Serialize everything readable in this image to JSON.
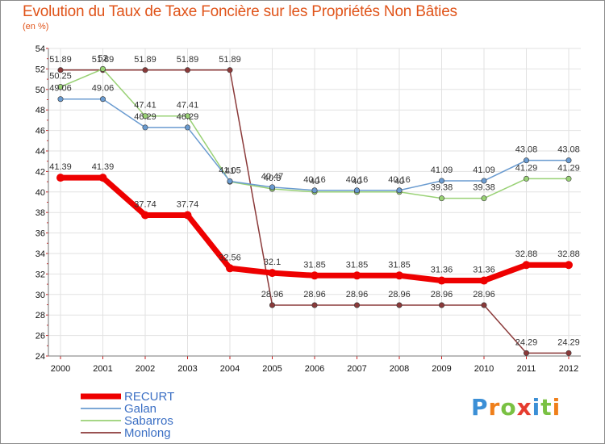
{
  "title": "Evolution du Taux de Taxe Foncière sur les Propriétés Non Bâties",
  "subtitle": "(en %)",
  "logo": {
    "text": "Proxiti",
    "colors": [
      "#3b8fd6",
      "#ef7f1a",
      "#7ac143",
      "#e63c2f",
      "#3b8fd6",
      "#7ac143",
      "#ef7f1a"
    ]
  },
  "chart_data": {
    "type": "line",
    "title": "Evolution du Taux de Taxe Foncière sur les Propriétés Non Bâties",
    "ylabel": "(en %)",
    "xlabel": "",
    "categories": [
      "2000",
      "2001",
      "2002",
      "2003",
      "2004",
      "2005",
      "2006",
      "2007",
      "2008",
      "2009",
      "2010",
      "2011",
      "2012"
    ],
    "ylim": [
      24,
      54
    ],
    "yticks": [
      24,
      26,
      28,
      30,
      32,
      34,
      36,
      38,
      40,
      42,
      44,
      46,
      48,
      50,
      52,
      54
    ],
    "grid": true,
    "legend_position": "bottom-left",
    "series": [
      {
        "name": "RECURT",
        "color": "#ee0000",
        "width": 7,
        "values": [
          41.39,
          41.39,
          37.74,
          37.74,
          32.56,
          32.1,
          31.85,
          31.85,
          31.85,
          31.36,
          31.36,
          32.88,
          32.88
        ],
        "labels": [
          "41.39",
          "41.39",
          "37.74",
          "37.74",
          "32.56",
          "32.1",
          "31.85",
          "31.85",
          "31.85",
          "31.36",
          "31.36",
          "32.88",
          "32.88"
        ]
      },
      {
        "name": "Galan",
        "color": "#6a9bd0",
        "width": 1.5,
        "values": [
          49.06,
          49.06,
          46.29,
          46.29,
          41.05,
          40.47,
          40.16,
          40.16,
          40.16,
          41.09,
          41.09,
          43.08,
          43.08
        ],
        "labels": [
          "49.06",
          "49.06",
          "46.29",
          "46.29",
          "41.05",
          "40.47",
          "40.16",
          "40.16",
          "40.16",
          "41.09",
          "41.09",
          "43.08",
          "43.08"
        ]
      },
      {
        "name": "Sabarros",
        "color": "#99d175",
        "width": 1.5,
        "values": [
          50.25,
          52,
          47.41,
          47.41,
          41,
          40.3,
          40,
          40,
          40,
          39.38,
          39.38,
          41.29,
          41.29
        ],
        "labels": [
          "50.25",
          "52",
          "47.41",
          "47.41",
          "41",
          "40.3",
          "40",
          "40",
          "40",
          "39.38",
          "39.38",
          "41.29",
          "41.29"
        ]
      },
      {
        "name": "Monlong",
        "color": "#8b3a3a",
        "width": 1.5,
        "values": [
          51.89,
          51.89,
          51.89,
          51.89,
          51.89,
          28.96,
          28.96,
          28.96,
          28.96,
          28.96,
          28.96,
          24.29,
          24.29
        ],
        "labels": [
          "51.89",
          "51.89",
          "51.89",
          "51.89",
          "51.89",
          "28.96",
          "28.96",
          "28.96",
          "28.96",
          "28.96",
          "28.96",
          "24.29",
          "24.29"
        ]
      }
    ]
  }
}
